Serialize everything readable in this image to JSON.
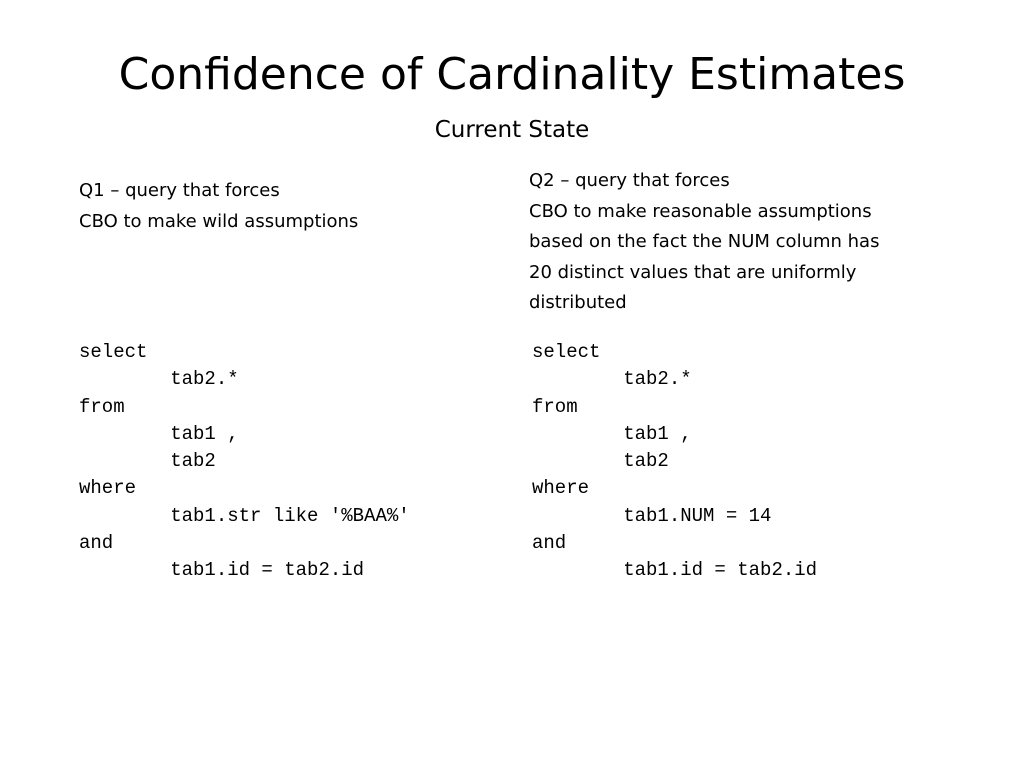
{
  "slide": {
    "title": "Confidence of Cardinality Estimates",
    "subtitle": "Current State"
  },
  "q1": {
    "description": "Q1 – query that forces\nCBO to make wild assumptions",
    "code": [
      "select",
      "        tab2.*",
      "from",
      "        tab1 ,",
      "        tab2",
      "where",
      "        tab1.str like '%BAA%'",
      "and",
      "        tab1.id = tab2.id"
    ]
  },
  "q2": {
    "description": "Q2 – query that forces\nCBO to make reasonable assumptions\nbased on the fact the NUM column has\n20 distinct values that are uniformly\ndistributed",
    "code": [
      "select",
      "        tab2.*",
      "from",
      "        tab1 ,",
      "        tab2",
      "where",
      "        tab1.NUM = 14",
      "and",
      "        tab1.id = tab2.id"
    ]
  }
}
